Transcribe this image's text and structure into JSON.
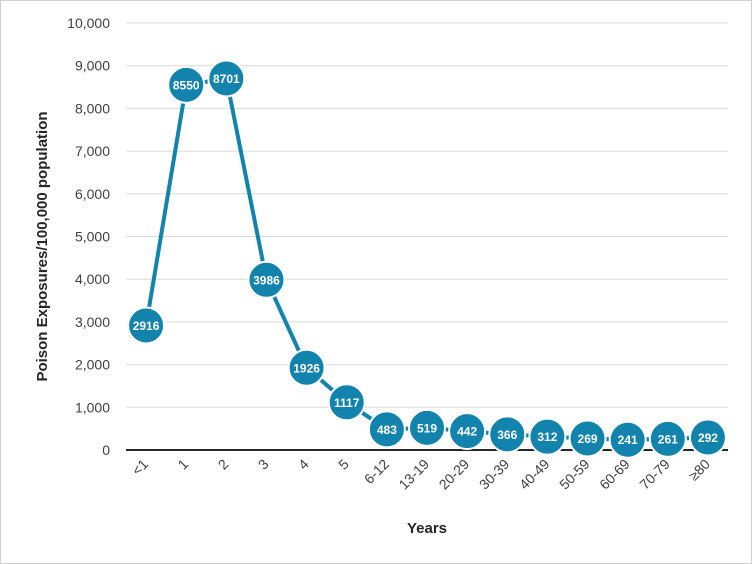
{
  "chart_data": {
    "type": "line",
    "title": "",
    "xlabel": "Years",
    "ylabel": "Poison Exposures/100,000 population",
    "ylim": [
      0,
      10000
    ],
    "y_ticks": [
      "0",
      "1,000",
      "2,000",
      "3,000",
      "4,000",
      "5,000",
      "6,000",
      "7,000",
      "8,000",
      "9,000",
      "10,000"
    ],
    "y_tick_values": [
      0,
      1000,
      2000,
      3000,
      4000,
      5000,
      6000,
      7000,
      8000,
      9000,
      10000
    ],
    "categories": [
      "<1",
      "1",
      "2",
      "3",
      "4",
      "5",
      "6-12",
      "13-19",
      "20-29",
      "30-39",
      "40-49",
      "50-59",
      "60-69",
      "70-79",
      "≥80"
    ],
    "series": [
      {
        "values": [
          2916,
          8550,
          8701,
          3986,
          1926,
          1117,
          483,
          519,
          442,
          366,
          312,
          269,
          241,
          261,
          292
        ],
        "labels": [
          "2916",
          "8550",
          "8701",
          "3986",
          "1926",
          "1117",
          "483",
          "519",
          "442",
          "366",
          "312",
          "269",
          "241",
          "261",
          "292"
        ],
        "color": "#1283ad"
      }
    ],
    "grid": true,
    "legend": "none"
  }
}
